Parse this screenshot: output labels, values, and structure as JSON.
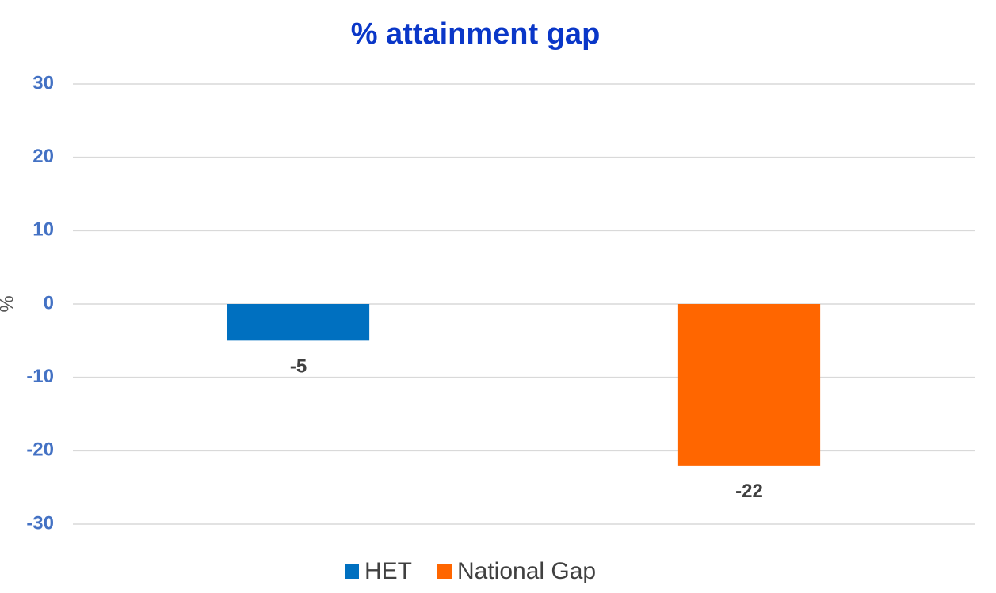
{
  "chart_data": {
    "type": "bar",
    "title": "% attainment gap",
    "y_label": "%",
    "categories": [
      null,
      null
    ],
    "series": [
      {
        "name": "HET",
        "color": "#0070c0",
        "values": [
          -5,
          null
        ]
      },
      {
        "name": "National Gap",
        "color": "#ff6600",
        "values": [
          null,
          -22
        ]
      }
    ],
    "ylim": [
      -30,
      30
    ],
    "yticks": [
      -30,
      -20,
      -10,
      0,
      10,
      20,
      30
    ],
    "grid": true,
    "legend": "bottom"
  }
}
